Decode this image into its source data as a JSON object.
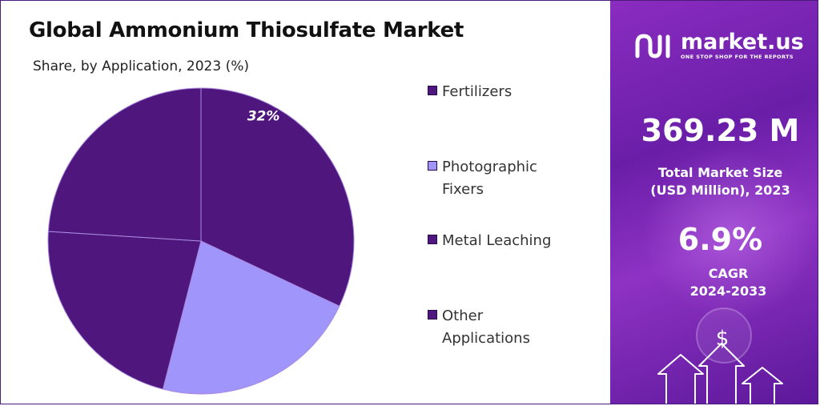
{
  "title": "Global Ammonium Thiosulfate Market",
  "subtitle": "Share, by Application, 2023 (%)",
  "colors": {
    "dark_purple": "#4f177d",
    "light_purple": "#9f95fb",
    "panel_purple": "#7a26b6"
  },
  "chart_data": {
    "type": "pie",
    "title": "Global Ammonium Thiosulfate Market",
    "subtitle": "Share, by Application, 2023 (%)",
    "slices": [
      {
        "label": "Fertilizers",
        "value": 32,
        "data_label": "32%",
        "color": "#4f177d"
      },
      {
        "label": "Photographic Fixers",
        "value": 22,
        "data_label": "",
        "color": "#9f95fb"
      },
      {
        "label": "Metal Leaching",
        "value": 22,
        "data_label": "",
        "color": "#4f177d"
      },
      {
        "label": "Other Applications",
        "value": 24,
        "data_label": "",
        "color": "#4f177d"
      }
    ],
    "legend_position": "right"
  },
  "legend": [
    {
      "label": "Fertilizers",
      "color": "#4f177d"
    },
    {
      "label": "Photographic Fixers",
      "color": "#9f95fb"
    },
    {
      "label": "Metal Leaching",
      "color": "#4f177d"
    },
    {
      "label": "Other Applications",
      "color": "#4f177d"
    }
  ],
  "side_panel": {
    "brand_name": "market.us",
    "brand_tagline": "ONE STOP SHOP FOR THE REPORTS",
    "brand_icon": "market-us-logo-icon",
    "market_size_value": "369.23 M",
    "market_size_label_line1": "Total Market Size",
    "market_size_label_line2": "(USD Million), 2023",
    "cagr_value": "6.9%",
    "cagr_label_line1": "CAGR",
    "cagr_label_line2": "2024-2033",
    "decor_icon": "dollar-growth-arrows-icon",
    "dollar_symbol": "$"
  }
}
